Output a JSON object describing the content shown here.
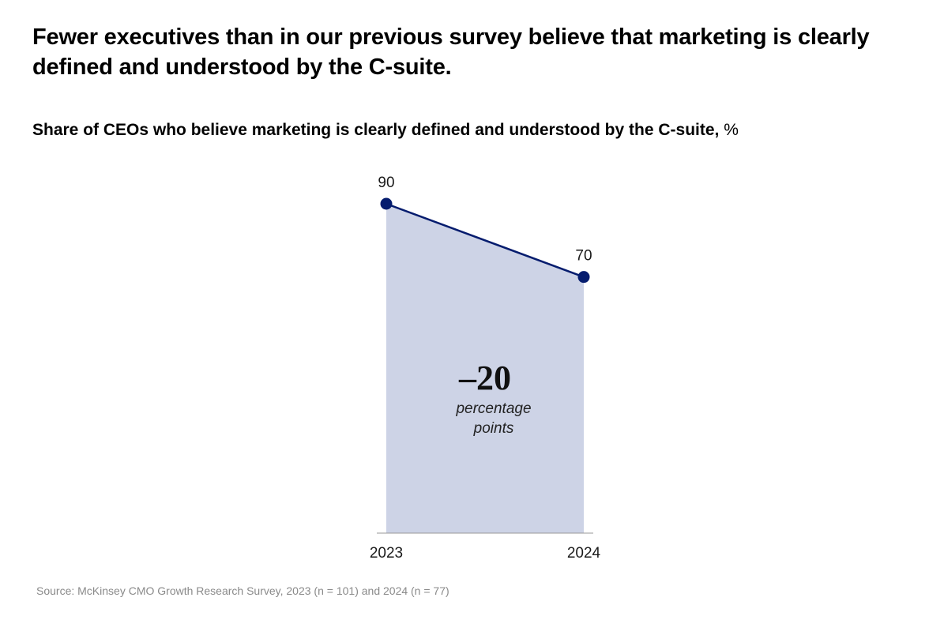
{
  "headline": "Fewer executives than in our previous survey believe that marketing is clearly defined and understood by the C-suite.",
  "subtitle": {
    "text": "Share of CEOs who believe marketing is clearly defined and understood by the C-suite,",
    "unit": "%"
  },
  "chart_data": {
    "type": "area",
    "title": "Share of CEOs who believe marketing is clearly defined and understood by the C-suite, %",
    "xlabel": "",
    "ylabel": "",
    "ylim": [
      0,
      90
    ],
    "grid": false,
    "categories": [
      "2023",
      "2024"
    ],
    "values": [
      90,
      70
    ],
    "value_labels": [
      "90",
      "70"
    ],
    "series": [
      {
        "name": "Share of CEOs",
        "values": [
          90,
          70
        ]
      }
    ],
    "annotation": {
      "value": "–20",
      "line1": "percentage",
      "line2": "points"
    },
    "colors": {
      "line": "#051c6e",
      "fill": "#cdd3e6",
      "axis": "#9a9a9a",
      "text": "#1a1a1a"
    }
  },
  "source": "Source: McKinsey CMO Growth Research Survey, 2023 (n = 101) and 2024 (n = 77)"
}
